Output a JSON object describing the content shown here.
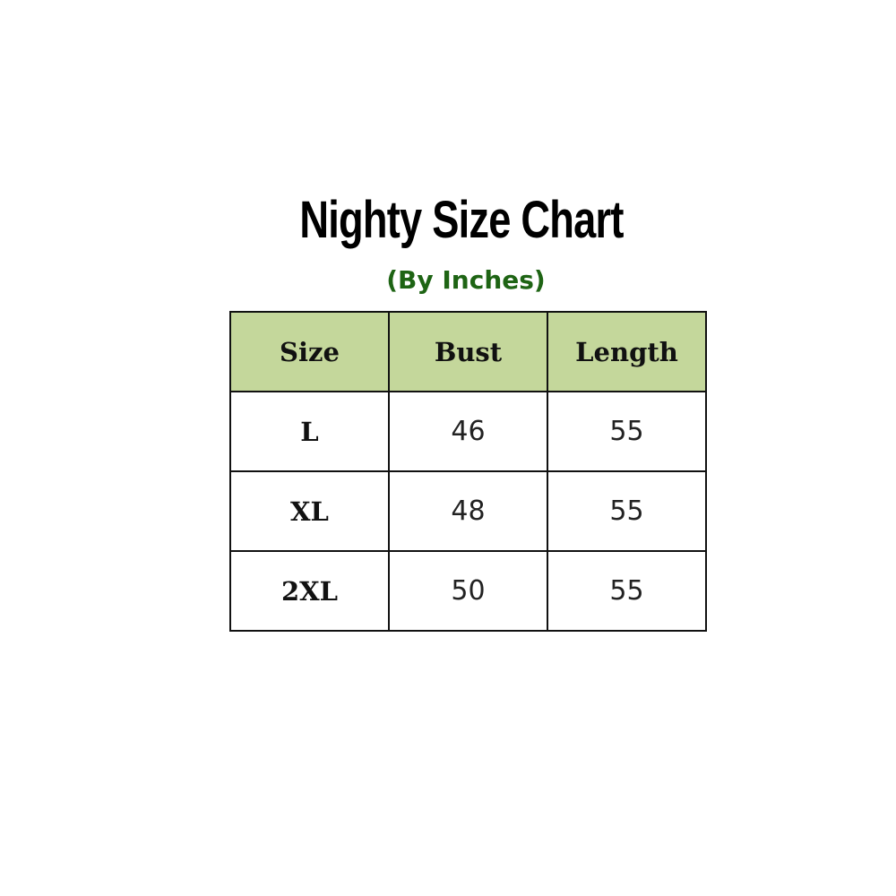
{
  "title": "Nighty Size Chart",
  "subtitle": "(By Inches)",
  "colors": {
    "header_fill": "#c4d79b",
    "subtitle": "#1e6414"
  },
  "table": {
    "headers": [
      "Size",
      "Bust",
      "Length"
    ],
    "rows": [
      [
        "L",
        "46",
        "55"
      ],
      [
        "XL",
        "48",
        "55"
      ],
      [
        "2XL",
        "50",
        "55"
      ]
    ]
  }
}
